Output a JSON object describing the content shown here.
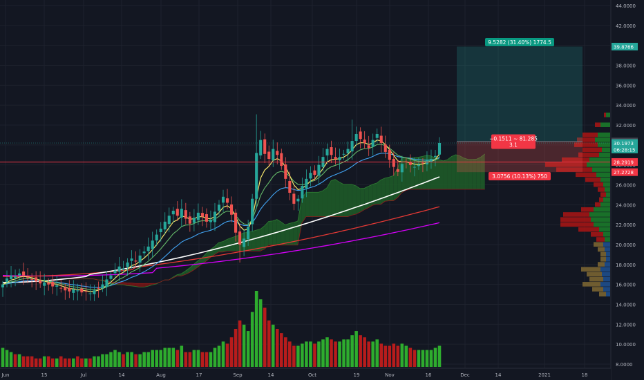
{
  "chart_data": {
    "type": "candlestick",
    "title": "",
    "y_axis": {
      "ticks": [
        "44.0000",
        "42.0000",
        "40.0000",
        "38.0000",
        "36.0000",
        "34.0000",
        "32.0000",
        "30.0000",
        "28.0000",
        "26.0000",
        "24.0000",
        "22.0000",
        "20.0000",
        "18.0000",
        "16.0000",
        "14.0000",
        "12.0000",
        "10.0000",
        "8.0000"
      ],
      "range": [
        7.3,
        44.5
      ]
    },
    "x_axis": {
      "ticks": [
        "Jun",
        "15",
        "Jul",
        "14",
        "Aug",
        "17",
        "Sep",
        "14",
        "Oct",
        "19",
        "Nov",
        "16",
        "Dec",
        "14",
        "2021",
        "18"
      ]
    },
    "price_labels": [
      {
        "text": "39.8766",
        "value": 39.8766,
        "color": "#26a69a"
      },
      {
        "text": "30.3484",
        "value": 30.3484,
        "color": "#434651"
      },
      {
        "text": "30.1973",
        "value": 30.1973,
        "color": "#26a69a"
      },
      {
        "text": "06:28:15",
        "value": 29.55,
        "color": "#26a69a"
      },
      {
        "text": "28.2919",
        "value": 28.2919,
        "color": "#f23645"
      },
      {
        "text": "27.2728",
        "value": 27.2728,
        "color": "#f23645"
      }
    ],
    "position_tool": {
      "entry": 30.35,
      "target": 39.8766,
      "stop": 27.2728,
      "target_label": "9.5282 (31.40%) 1774.5",
      "center_label_line1": "−0.1511 ~ 81.285",
      "center_label_line2": "3.1",
      "stop_label": "3.0756 (10.13%) 750"
    },
    "horizontal_line": 28.2919,
    "series_colors": {
      "up": "#26a69a",
      "down": "#ef5350",
      "volume_up": "#2eac2e",
      "volume_down": "#b71c1c",
      "ema_fast": "#f5e56b",
      "ema_mid": "#66bb6a",
      "ema_slow": "#42a5f5",
      "ma200": "#ffffff",
      "ma_red": "#e53935",
      "ma_purple": "#d500f9",
      "cloud_bull": "#1e5e28",
      "cloud_bear": "#7a1414"
    },
    "close_approx": [
      16.0,
      16.6,
      16.9,
      16.8,
      17.1,
      16.9,
      16.7,
      16.5,
      16.3,
      16.1,
      16.2,
      16.0,
      15.8,
      15.9,
      15.6,
      15.4,
      15.3,
      15.5,
      15.4,
      15.2,
      15.3,
      15.1,
      15.4,
      15.6,
      16.0,
      16.5,
      16.9,
      17.4,
      17.8,
      17.6,
      18.2,
      18.6,
      18.3,
      18.9,
      19.3,
      19.8,
      20.4,
      21.0,
      21.6,
      22.3,
      22.9,
      23.4,
      22.9,
      23.6,
      22.6,
      22.1,
      22.7,
      23.2,
      22.8,
      22.3,
      22.5,
      23.3,
      24.0,
      24.8,
      24.2,
      23.0,
      21.2,
      20.0,
      20.6,
      21.8,
      24.6,
      29.2,
      30.5,
      29.1,
      28.6,
      29.6,
      29.0,
      27.9,
      26.6,
      25.2,
      24.1,
      24.6,
      25.9,
      26.6,
      27.2,
      27.0,
      28.0,
      28.8,
      29.6,
      29.0,
      28.6,
      28.8,
      29.1,
      29.6,
      30.4,
      31.1,
      30.6,
      30.2,
      29.7,
      30.5,
      31.1,
      30.2,
      29.3,
      28.5,
      27.8,
      27.3,
      28.1,
      28.3,
      28.0,
      27.8,
      28.0,
      28.2,
      28.5,
      28.6,
      28.9,
      30.2
    ],
    "volume_approx": [
      9,
      8,
      7,
      6,
      6,
      5,
      5,
      5,
      4,
      4,
      5,
      5,
      4,
      4,
      5,
      4,
      4,
      4,
      5,
      4,
      4,
      4,
      5,
      5,
      6,
      6,
      7,
      8,
      7,
      6,
      7,
      7,
      6,
      6,
      7,
      7,
      8,
      8,
      8,
      9,
      9,
      9,
      8,
      10,
      7,
      7,
      8,
      8,
      7,
      7,
      7,
      9,
      10,
      12,
      11,
      14,
      18,
      22,
      20,
      17,
      26,
      36,
      32,
      28,
      22,
      20,
      18,
      16,
      14,
      12,
      10,
      10,
      11,
      12,
      12,
      11,
      12,
      13,
      14,
      13,
      12,
      12,
      13,
      13,
      15,
      17,
      15,
      14,
      12,
      12,
      13,
      11,
      10,
      10,
      11,
      10,
      11,
      10,
      9,
      8,
      8,
      8,
      8,
      8,
      9,
      10
    ],
    "volume_profile_note": "horizontal volume-by-price histogram on the right edge"
  }
}
